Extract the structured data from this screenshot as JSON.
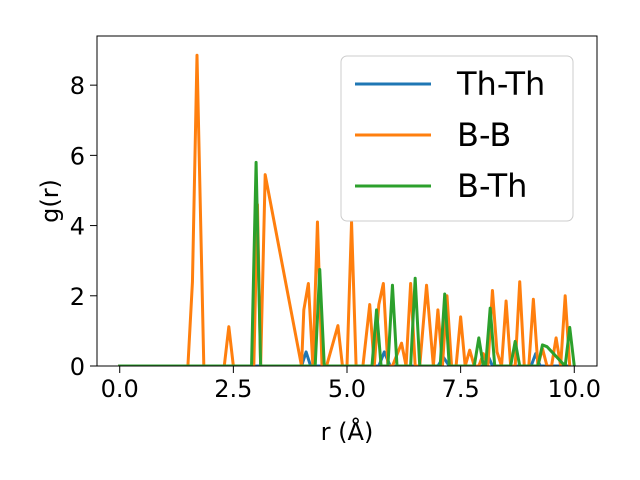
{
  "chart_data": {
    "type": "line",
    "title": "",
    "xlabel": "r (Å)",
    "ylabel": "g(r)",
    "xlim": [
      -0.5,
      10.5
    ],
    "ylim": [
      0,
      9.4
    ],
    "xticks": [
      0.0,
      2.5,
      5.0,
      7.5,
      10.0
    ],
    "xtick_labels": [
      "0.0",
      "2.5",
      "5.0",
      "7.5",
      "10.0"
    ],
    "yticks": [
      0,
      2,
      4,
      6,
      8
    ],
    "ytick_labels": [
      "0",
      "2",
      "4",
      "6",
      "8"
    ],
    "grid": false,
    "legend_position": "top-right",
    "series": [
      {
        "name": "Th-Th",
        "color": "#1f77b4",
        "x": [
          0.0,
          4.0,
          4.1,
          4.2,
          5.7,
          5.82,
          5.95,
          7.0,
          7.12,
          7.25,
          8.0,
          8.1,
          8.2,
          9.05,
          9.15,
          9.25,
          9.9
        ],
        "y": [
          0,
          0,
          0.4,
          0,
          0,
          0.4,
          0,
          0,
          0.25,
          0,
          0,
          0.3,
          0,
          0,
          0.35,
          0,
          0
        ]
      },
      {
        "name": "B-B",
        "color": "#ff7f0e",
        "x": [
          0.0,
          1.5,
          1.6,
          1.7,
          1.85,
          2.3,
          2.4,
          2.5,
          2.95,
          3.03,
          3.1,
          3.2,
          4.0,
          4.05,
          4.15,
          4.25,
          4.35,
          4.45,
          4.55,
          4.8,
          4.9,
          5.0,
          5.1,
          5.2,
          5.35,
          5.5,
          5.6,
          5.7,
          5.8,
          5.9,
          6.0,
          6.2,
          6.3,
          6.4,
          6.5,
          6.6,
          6.75,
          6.9,
          7.0,
          7.1,
          7.2,
          7.3,
          7.4,
          7.5,
          7.6,
          7.7,
          7.8,
          7.9,
          8.0,
          8.1,
          8.2,
          8.3,
          8.4,
          8.5,
          8.6,
          8.7,
          8.8,
          8.9,
          9.0,
          9.1,
          9.2,
          9.3,
          9.4,
          9.5,
          9.6,
          9.7,
          9.8,
          9.9
        ],
        "y": [
          0,
          0,
          2.4,
          8.85,
          0,
          0,
          1.12,
          0,
          0,
          4.6,
          0,
          5.45,
          0,
          1.6,
          2.35,
          0,
          4.1,
          0,
          0,
          1.15,
          0,
          0,
          4.1,
          0,
          0,
          1.75,
          0,
          1.75,
          2.35,
          0,
          0,
          0.65,
          0,
          2.35,
          0,
          0,
          2.3,
          0,
          1.6,
          0,
          2.0,
          0,
          0,
          1.4,
          0,
          0.45,
          0,
          0,
          0.35,
          0,
          2.15,
          0.4,
          0,
          1.85,
          0,
          0,
          2.4,
          0,
          0,
          1.9,
          0,
          0.5,
          0,
          0,
          0.8,
          0,
          2.0,
          0
        ]
      },
      {
        "name": "B-Th",
        "color": "#2ca02c",
        "x": [
          0.0,
          2.9,
          3.0,
          3.1,
          4.3,
          4.4,
          4.5,
          5.55,
          5.65,
          5.75,
          5.9,
          6.0,
          6.1,
          6.4,
          6.5,
          6.6,
          7.05,
          7.15,
          7.25,
          7.8,
          7.9,
          8.0,
          8.05,
          8.15,
          8.25,
          8.6,
          8.7,
          8.8,
          9.2,
          9.3,
          9.4,
          9.8,
          9.9,
          10.0
        ],
        "y": [
          0,
          0,
          5.8,
          0,
          0,
          2.75,
          0,
          0,
          1.6,
          0,
          0,
          2.3,
          0,
          0,
          2.5,
          0,
          0,
          2.05,
          0,
          0,
          0.8,
          0,
          0,
          1.65,
          0,
          0,
          0.7,
          0,
          0,
          0.6,
          0.55,
          0,
          1.1,
          0
        ]
      }
    ]
  }
}
